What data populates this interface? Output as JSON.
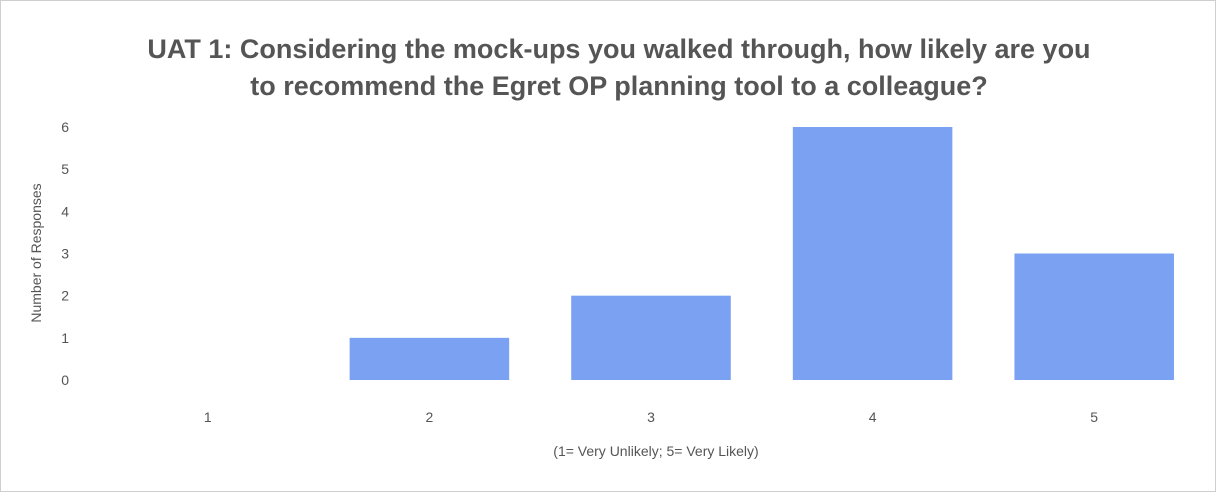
{
  "chart_data": {
    "type": "bar",
    "title_lines": [
      "UAT 1:  Considering the mock-ups you walked through, how likely are you",
      "to recommend the Egret OP planning tool to a colleague?"
    ],
    "categories": [
      "1",
      "2",
      "3",
      "4",
      "5"
    ],
    "values": [
      0,
      1,
      2,
      6,
      3
    ],
    "xlabel": "(1= Very Unlikely; 5= Very Likely)",
    "ylabel": "Number of Responses",
    "ylim": [
      0,
      6
    ],
    "yticks": [
      "0",
      "1",
      "2",
      "3",
      "4",
      "5",
      "6"
    ],
    "grid": false,
    "legend": "none",
    "bar_color": "#7ba2f2"
  }
}
